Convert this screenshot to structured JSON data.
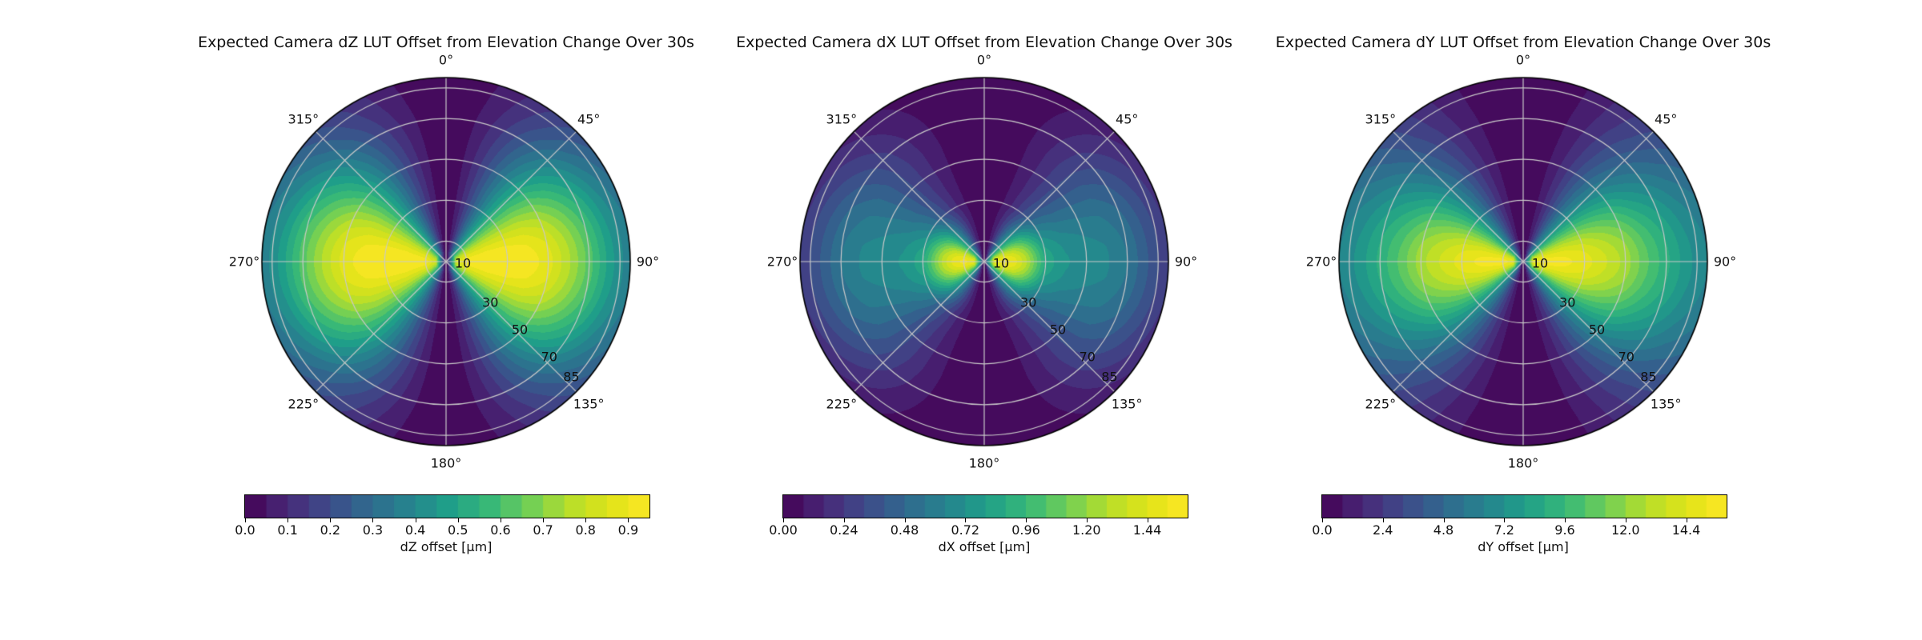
{
  "page": {
    "background": "#ffffff"
  },
  "colormap": {
    "name": "viridis",
    "stops": [
      "#440154",
      "#482878",
      "#3e4989",
      "#31688e",
      "#26828e",
      "#1f9e89",
      "#35b779",
      "#6ece58",
      "#b5de2b",
      "#dfe318",
      "#fde725"
    ]
  },
  "grid": {
    "line_color": "#c9c9c9",
    "boundary_color": "#000000"
  },
  "chart_data": [
    {
      "type": "heatmap",
      "projection": "polar",
      "title": "Expected Camera dZ LUT Offset from Elevation Change Over 30s",
      "theta_zero": "top",
      "theta_direction": "clockwise",
      "theta_ticks": [
        0,
        45,
        90,
        135,
        180,
        225,
        270,
        315
      ],
      "theta_tick_labels": [
        "0°",
        "45°",
        "90°",
        "135°",
        "180°",
        "225°",
        "270°",
        "315°"
      ],
      "r_ticks": [
        10,
        30,
        50,
        70,
        85
      ],
      "r_tick_labels": [
        "10",
        "30",
        "50",
        "70",
        "85"
      ],
      "r_max": 90,
      "colorbar": {
        "label": "dZ offset [μm]",
        "vmin": 0,
        "vmax": 0.95,
        "n_bands": 19,
        "tick_values": [
          0.0,
          0.1,
          0.2,
          0.3,
          0.4,
          0.5,
          0.6,
          0.7,
          0.8,
          0.9
        ],
        "tick_labels": [
          "0.0",
          "0.1",
          "0.2",
          "0.3",
          "0.4",
          "0.5",
          "0.6",
          "0.7",
          "0.8",
          "0.9"
        ]
      },
      "field": {
        "pattern": "two lobes at 90° and 270°, dark along 0°-180° axis",
        "peak": 0.95,
        "angular_exponent": 1.6,
        "profile_r": [
          0,
          2,
          5,
          10,
          20,
          30,
          40,
          50,
          60,
          70,
          80,
          90
        ],
        "profile_v": [
          0,
          0.3,
          0.85,
          0.97,
          1.0,
          1.0,
          0.98,
          0.92,
          0.8,
          0.66,
          0.5,
          0.38
        ]
      }
    },
    {
      "type": "heatmap",
      "projection": "polar",
      "title": "Expected Camera dX LUT Offset from Elevation Change Over 30s",
      "theta_zero": "top",
      "theta_direction": "clockwise",
      "theta_ticks": [
        0,
        45,
        90,
        135,
        180,
        225,
        270,
        315
      ],
      "theta_tick_labels": [
        "0°",
        "45°",
        "90°",
        "135°",
        "180°",
        "225°",
        "270°",
        "315°"
      ],
      "r_ticks": [
        10,
        30,
        50,
        70,
        85
      ],
      "r_tick_labels": [
        "10",
        "30",
        "50",
        "70",
        "85"
      ],
      "r_max": 90,
      "colorbar": {
        "label": "dX offset [μm]",
        "vmin": 0,
        "vmax": 1.6,
        "n_bands": 20,
        "tick_values": [
          0.0,
          0.24,
          0.48,
          0.72,
          0.96,
          1.2,
          1.44
        ],
        "tick_labels": [
          "0.00",
          "0.24",
          "0.48",
          "0.72",
          "0.96",
          "1.20",
          "1.44"
        ]
      },
      "field": {
        "pattern": "small bright lobes near center at 90° and 270°, dark rim",
        "peak": 1.55,
        "angular_exponent": 2.0,
        "profile_r": [
          0,
          2,
          5,
          10,
          15,
          20,
          30,
          40,
          50,
          60,
          70,
          80,
          90
        ],
        "profile_v": [
          0,
          0.5,
          0.95,
          1.0,
          0.95,
          0.85,
          0.55,
          0.47,
          0.44,
          0.42,
          0.36,
          0.26,
          0.16
        ]
      }
    },
    {
      "type": "heatmap",
      "projection": "polar",
      "title": "Expected Camera dY LUT Offset from Elevation Change Over 30s",
      "theta_zero": "top",
      "theta_direction": "clockwise",
      "theta_ticks": [
        0,
        45,
        90,
        135,
        180,
        225,
        270,
        315
      ],
      "theta_tick_labels": [
        "0°",
        "45°",
        "90°",
        "135°",
        "180°",
        "225°",
        "270°",
        "315°"
      ],
      "r_ticks": [
        10,
        30,
        50,
        70,
        85
      ],
      "r_tick_labels": [
        "10",
        "30",
        "50",
        "70",
        "85"
      ],
      "r_max": 90,
      "colorbar": {
        "label": "dY offset [μm]",
        "vmin": 0,
        "vmax": 16.0,
        "n_bands": 20,
        "tick_values": [
          0.0,
          2.4,
          4.8,
          7.2,
          9.6,
          12.0,
          14.4
        ],
        "tick_labels": [
          "0.0",
          "2.4",
          "4.8",
          "7.2",
          "9.6",
          "12.0",
          "14.4"
        ]
      },
      "field": {
        "pattern": "slim bright lobes at 90° and 270° with broad teal ring, teal rim",
        "peak": 15.6,
        "angular_exponent": 2.0,
        "profile_r": [
          0,
          2,
          5,
          10,
          20,
          30,
          40,
          50,
          60,
          70,
          80,
          90
        ],
        "profile_v": [
          0,
          0.5,
          0.95,
          1.0,
          0.99,
          0.95,
          0.88,
          0.8,
          0.68,
          0.58,
          0.48,
          0.41
        ]
      }
    }
  ]
}
